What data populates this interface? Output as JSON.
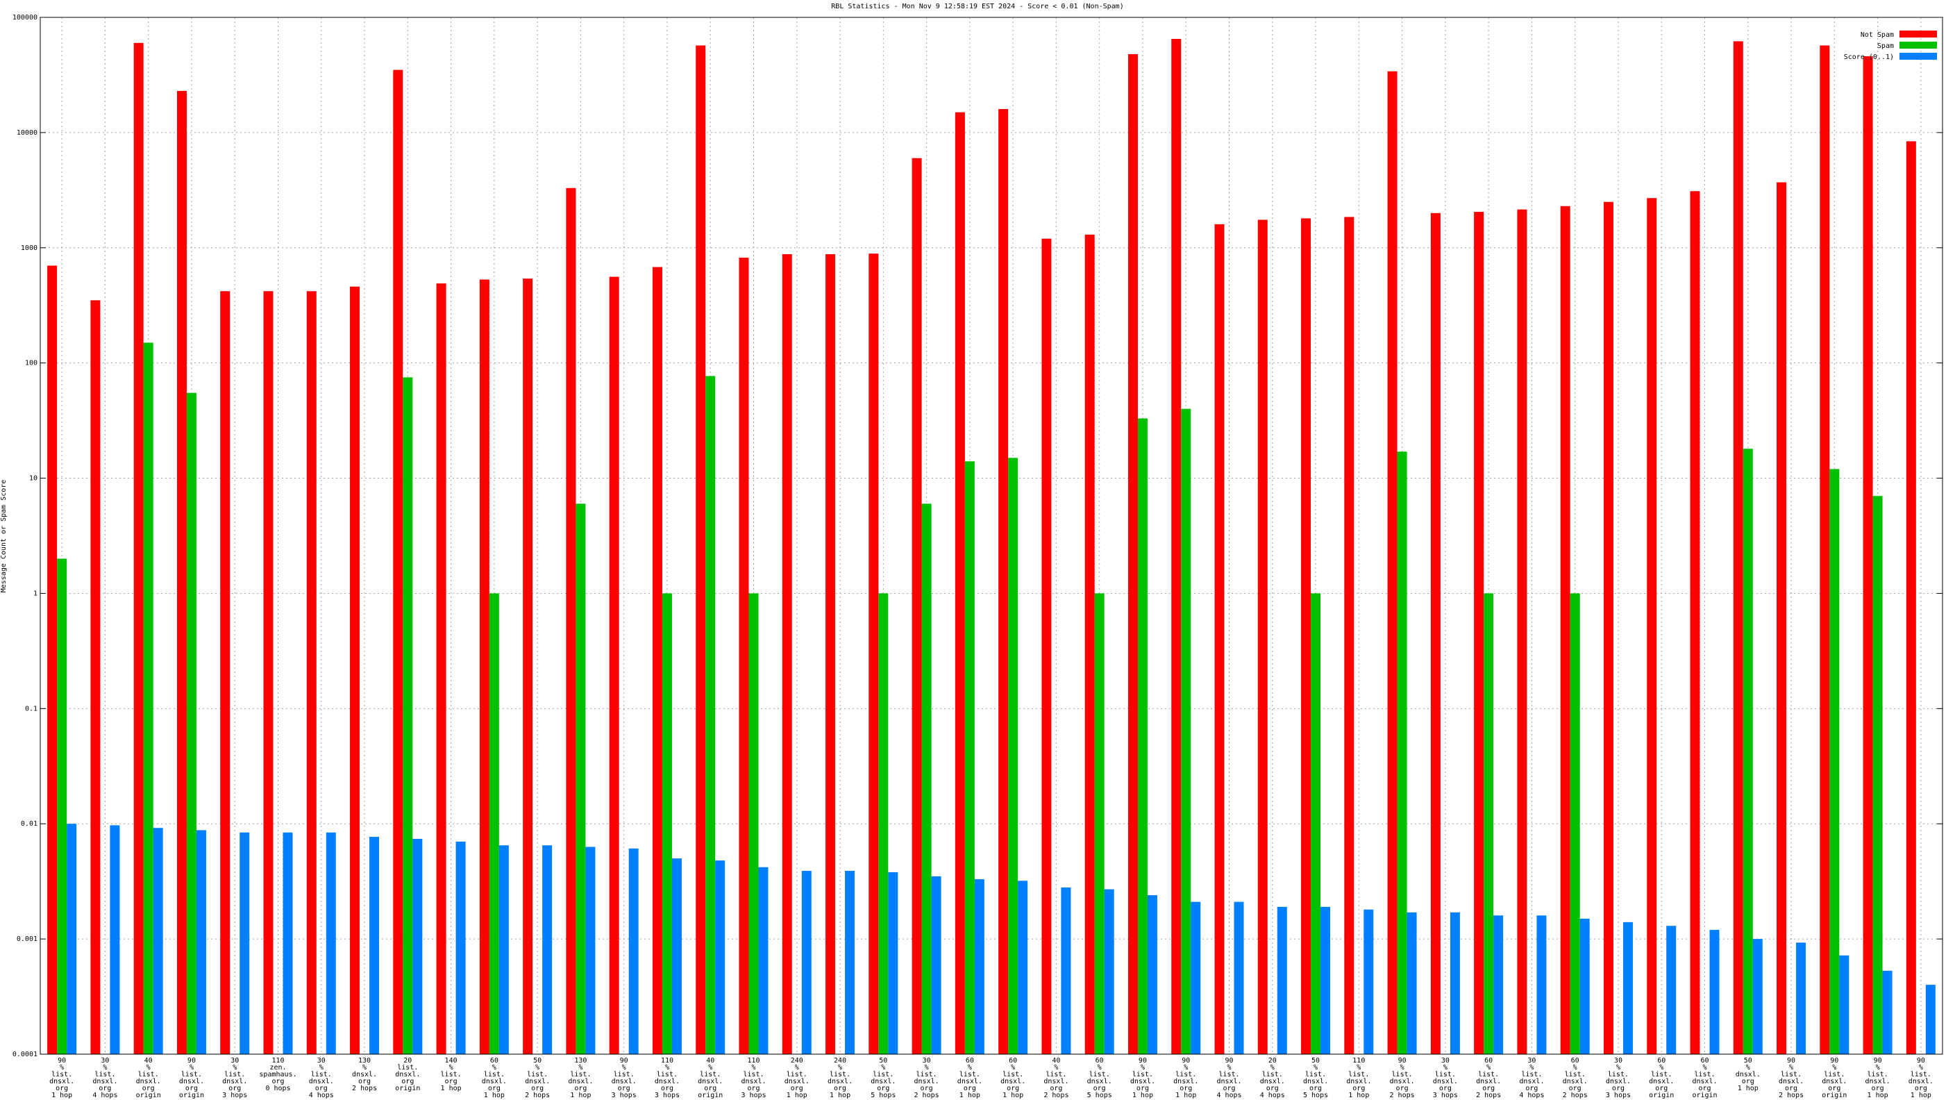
{
  "chart_data": {
    "type": "bar",
    "title": "RBL Statistics - Mon Nov  9 12:58:19 EST 2024 - Score < 0.01 (Non-Spam)",
    "y_label": "Message Count or Spam Score",
    "log_scale": true,
    "grid": true,
    "legend": "top-right",
    "ylim": [
      0.0001,
      100000
    ],
    "yticks": [
      0.0001,
      0.001,
      0.01,
      0.1,
      1,
      10,
      100,
      1000,
      10000,
      100000
    ],
    "categories": [
      [
        "90",
        "%",
        "list.",
        "dnsxl.",
        "org",
        "1 hop"
      ],
      [
        "30",
        "%",
        "list.",
        "dnsxl.",
        "org",
        "4 hops"
      ],
      [
        "40",
        "%",
        "list.",
        "dnsxl.",
        "org",
        "origin"
      ],
      [
        "90",
        "%",
        "list.",
        "dnsxl.",
        "org",
        "origin"
      ],
      [
        "30",
        "%",
        "list.",
        "dnsxl.",
        "org",
        "3 hops"
      ],
      [
        "110",
        "zen.",
        "spamhaus.",
        "org",
        "0 hops"
      ],
      [
        "30",
        "%",
        "list.",
        "dnsxl.",
        "org",
        "4 hops"
      ],
      [
        "130",
        "%",
        "dnsxl.",
        "org",
        "2 hops"
      ],
      [
        "20",
        "list.",
        "dnsxl.",
        "org",
        "origin"
      ],
      [
        "140",
        "%",
        "list.",
        "org",
        "1 hop"
      ],
      [
        "60",
        "%",
        "list.",
        "dnsxl.",
        "org",
        "1 hop"
      ],
      [
        "50",
        "%",
        "list.",
        "dnsxl.",
        "org",
        "2 hops"
      ],
      [
        "130",
        "%",
        "list.",
        "dnsxl.",
        "org",
        "1 hop"
      ],
      [
        "90",
        "%",
        "list.",
        "dnsxl.",
        "org",
        "3 hops"
      ],
      [
        "110",
        "%",
        "list.",
        "dnsxl.",
        "org",
        "3 hops"
      ],
      [
        "40",
        "%",
        "list.",
        "dnsxl.",
        "org",
        "origin"
      ],
      [
        "110",
        "%",
        "list.",
        "dnsxl.",
        "org",
        "3 hops"
      ],
      [
        "240",
        "%",
        "list.",
        "dnsxl.",
        "org",
        "1 hop"
      ],
      [
        "240",
        "%",
        "list.",
        "dnsxl.",
        "org",
        "1 hop"
      ],
      [
        "50",
        "%",
        "list.",
        "dnsxl.",
        "org",
        "5 hops"
      ],
      [
        "30",
        "%",
        "list.",
        "dnsxl.",
        "org",
        "2 hops"
      ],
      [
        "60",
        "%",
        "list.",
        "dnsxl.",
        "org",
        "1 hop"
      ],
      [
        "60",
        "%",
        "list.",
        "dnsxl.",
        "org",
        "1 hop"
      ],
      [
        "40",
        "%",
        "list.",
        "dnsxl.",
        "org",
        "2 hops"
      ],
      [
        "60",
        "%",
        "list.",
        "dnsxl.",
        "org",
        "5 hops"
      ],
      [
        "90",
        "%",
        "list.",
        "dnsxl.",
        "org",
        "1 hop"
      ],
      [
        "90",
        "%",
        "list.",
        "dnsxl.",
        "org",
        "1 hop"
      ],
      [
        "90",
        "%",
        "list.",
        "dnsxl.",
        "org",
        "4 hops"
      ],
      [
        "20",
        "%",
        "list.",
        "dnsxl.",
        "org",
        "4 hops"
      ],
      [
        "50",
        "%",
        "list.",
        "dnsxl.",
        "org",
        "5 hops"
      ],
      [
        "110",
        "%",
        "list.",
        "dnsxl.",
        "org",
        "1 hop"
      ],
      [
        "90",
        "%",
        "list.",
        "dnsxl.",
        "org",
        "2 hops"
      ],
      [
        "30",
        "%",
        "list.",
        "dnsxl.",
        "org",
        "3 hops"
      ],
      [
        "60",
        "%",
        "list.",
        "dnsxl.",
        "org",
        "2 hops"
      ],
      [
        "30",
        "%",
        "list.",
        "dnsxl.",
        "org",
        "4 hops"
      ],
      [
        "60",
        "%",
        "list.",
        "dnsxl.",
        "org",
        "2 hops"
      ],
      [
        "30",
        "%",
        "list.",
        "dnsxl.",
        "org",
        "3 hops"
      ],
      [
        "60",
        "%",
        "list.",
        "dnsxl.",
        "org",
        "origin"
      ],
      [
        "60",
        "%",
        "list.",
        "dnsxl.",
        "org",
        "origin"
      ],
      [
        "50",
        "%",
        "dnsxl.",
        "org",
        "1 hop"
      ],
      [
        "90",
        "%",
        "list.",
        "dnsxl.",
        "org",
        "2 hops"
      ],
      [
        "90",
        "%",
        "list.",
        "dnsxl.",
        "org",
        "origin"
      ],
      [
        "90",
        "%",
        "list.",
        "dnsxl.",
        "org",
        "1 hop"
      ],
      [
        "90",
        "%",
        "list.",
        "dnsxl.",
        "org",
        "1 hop"
      ]
    ],
    "series": [
      {
        "name": "Not Spam",
        "color": "#ff0000",
        "values": [
          700,
          350,
          60000,
          23000,
          420,
          420,
          420,
          460,
          35000,
          490,
          530,
          540,
          3300,
          560,
          680,
          57000,
          820,
          880,
          880,
          890,
          6000,
          15000,
          16000,
          1200,
          1300,
          48000,
          65000,
          1600,
          1750,
          1800,
          1850,
          34000,
          2000,
          2050,
          2150,
          2300,
          2500,
          2700,
          3100,
          62000,
          3700,
          57000,
          46000,
          8400
        ]
      },
      {
        "name": "Spam",
        "color": "#00c000",
        "values": [
          2,
          null,
          150,
          55,
          null,
          null,
          null,
          null,
          75,
          null,
          1,
          null,
          6,
          null,
          1,
          77,
          1,
          null,
          null,
          1,
          6,
          14,
          15,
          null,
          1,
          33,
          40,
          null,
          null,
          1,
          null,
          17,
          null,
          1,
          null,
          1,
          null,
          null,
          null,
          18,
          null,
          12,
          7,
          null
        ]
      },
      {
        "name": "Score (0..1)",
        "color": "#0080ff",
        "values": [
          0.01,
          0.0097,
          0.0092,
          0.0088,
          0.0084,
          0.0084,
          0.0084,
          0.0077,
          0.0074,
          0.007,
          0.0065,
          0.0065,
          0.0063,
          0.0061,
          0.005,
          0.0048,
          0.0042,
          0.0039,
          0.0039,
          0.0038,
          0.0035,
          0.0033,
          0.0032,
          0.0028,
          0.0027,
          0.0024,
          0.0021,
          0.0021,
          0.0019,
          0.0019,
          0.0018,
          0.0017,
          0.0017,
          0.0016,
          0.0016,
          0.0015,
          0.0014,
          0.0013,
          0.0012,
          0.001,
          0.00093,
          0.00072,
          0.00053,
          0.0004
        ]
      }
    ]
  }
}
